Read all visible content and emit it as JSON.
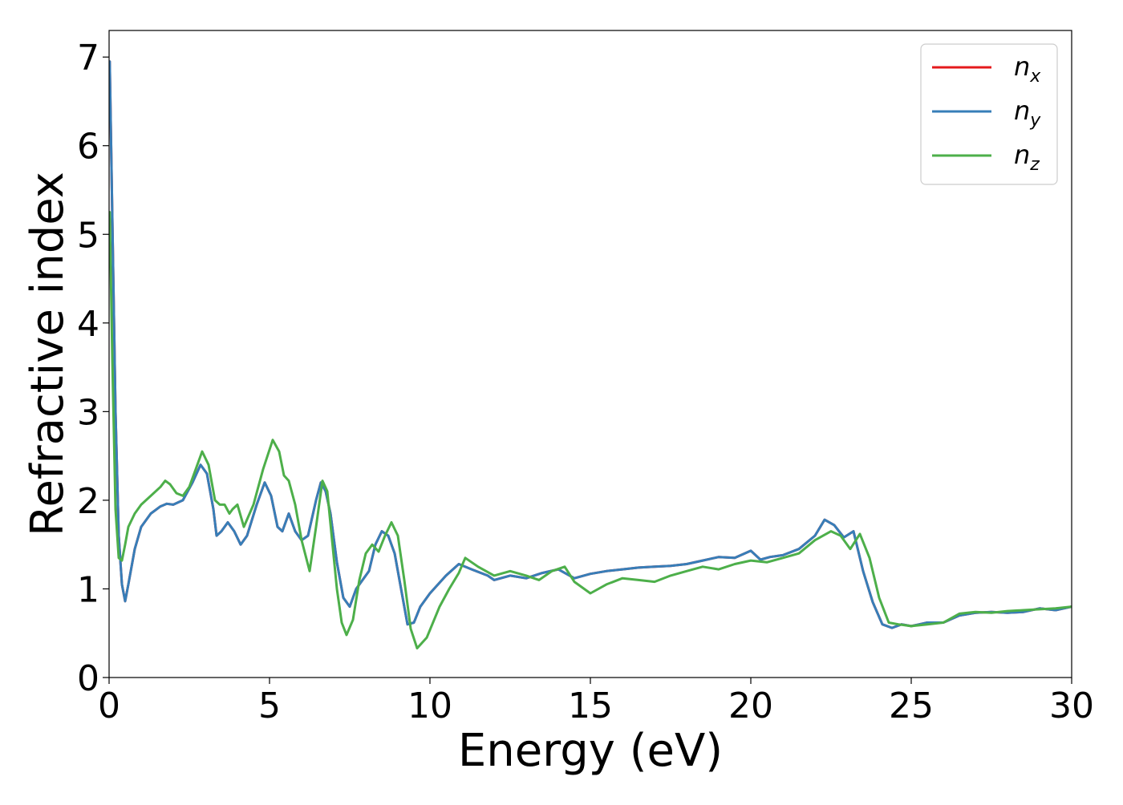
{
  "chart_data": {
    "type": "line",
    "title": "",
    "xlabel": "Energy (eV)",
    "ylabel": "Refractive index",
    "xlim": [
      0,
      30
    ],
    "ylim": [
      0,
      7.3
    ],
    "xticks": [
      "0",
      "5",
      "10",
      "15",
      "20",
      "25",
      "30"
    ],
    "yticks": [
      "0",
      "1",
      "2",
      "3",
      "4",
      "5",
      "6",
      "7"
    ],
    "grid": false,
    "legend_position": "top-right",
    "legend": [
      {
        "base": "n",
        "sub": "x",
        "color": "#e41a1c"
      },
      {
        "base": "n",
        "sub": "y",
        "color": "#377eb8"
      },
      {
        "base": "n",
        "sub": "z",
        "color": "#4daf4a"
      }
    ],
    "series": [
      {
        "name": "n_x",
        "color": "#e41a1c",
        "x": [
          0.02,
          0.1,
          0.2,
          0.3,
          0.4,
          0.5,
          0.6,
          0.8,
          1.0,
          1.3,
          1.6,
          1.8,
          2.0,
          2.3,
          2.6,
          2.85,
          3.05,
          3.25,
          3.35,
          3.5,
          3.7,
          3.9,
          4.1,
          4.3,
          4.6,
          4.85,
          5.05,
          5.25,
          5.4,
          5.6,
          5.8,
          6.0,
          6.2,
          6.45,
          6.6,
          6.75,
          6.9,
          7.1,
          7.3,
          7.5,
          7.7,
          7.9,
          8.1,
          8.3,
          8.5,
          8.7,
          8.9,
          9.1,
          9.3,
          9.5,
          9.7,
          10.0,
          10.5,
          10.9,
          11.3,
          11.8,
          12.0,
          12.5,
          13.0,
          13.5,
          14.0,
          14.5,
          15.0,
          15.5,
          16.0,
          16.5,
          17.0,
          17.5,
          18.0,
          18.5,
          19.0,
          19.5,
          20.0,
          20.3,
          20.6,
          21.0,
          21.5,
          22.0,
          22.3,
          22.6,
          22.9,
          23.2,
          23.5,
          23.8,
          24.1,
          24.4,
          24.7,
          25.0,
          25.5,
          26.0,
          26.5,
          27.0,
          27.5,
          28.0,
          28.5,
          29.0,
          29.5,
          30.0
        ],
        "y": [
          6.95,
          5.2,
          3.0,
          1.6,
          1.05,
          0.86,
          1.05,
          1.45,
          1.7,
          1.85,
          1.93,
          1.96,
          1.95,
          2.0,
          2.2,
          2.4,
          2.3,
          1.9,
          1.6,
          1.65,
          1.75,
          1.65,
          1.5,
          1.6,
          1.95,
          2.2,
          2.05,
          1.7,
          1.65,
          1.85,
          1.65,
          1.55,
          1.6,
          2.0,
          2.2,
          2.1,
          1.85,
          1.3,
          0.9,
          0.8,
          1.0,
          1.1,
          1.2,
          1.5,
          1.65,
          1.6,
          1.4,
          1.0,
          0.6,
          0.62,
          0.8,
          0.95,
          1.15,
          1.28,
          1.22,
          1.15,
          1.1,
          1.15,
          1.12,
          1.18,
          1.22,
          1.12,
          1.17,
          1.2,
          1.22,
          1.24,
          1.25,
          1.26,
          1.28,
          1.32,
          1.36,
          1.35,
          1.43,
          1.33,
          1.36,
          1.38,
          1.45,
          1.6,
          1.78,
          1.72,
          1.58,
          1.65,
          1.2,
          0.85,
          0.6,
          0.56,
          0.6,
          0.58,
          0.62,
          0.62,
          0.7,
          0.73,
          0.74,
          0.73,
          0.74,
          0.78,
          0.76,
          0.8
        ]
      },
      {
        "name": "n_y",
        "color": "#377eb8",
        "x": [
          0.02,
          0.1,
          0.2,
          0.3,
          0.4,
          0.5,
          0.6,
          0.8,
          1.0,
          1.3,
          1.6,
          1.8,
          2.0,
          2.3,
          2.6,
          2.85,
          3.05,
          3.25,
          3.35,
          3.5,
          3.7,
          3.9,
          4.1,
          4.3,
          4.6,
          4.85,
          5.05,
          5.25,
          5.4,
          5.6,
          5.8,
          6.0,
          6.2,
          6.45,
          6.6,
          6.75,
          6.9,
          7.1,
          7.3,
          7.5,
          7.7,
          7.9,
          8.1,
          8.3,
          8.5,
          8.7,
          8.9,
          9.1,
          9.3,
          9.5,
          9.7,
          10.0,
          10.5,
          10.9,
          11.3,
          11.8,
          12.0,
          12.5,
          13.0,
          13.5,
          14.0,
          14.5,
          15.0,
          15.5,
          16.0,
          16.5,
          17.0,
          17.5,
          18.0,
          18.5,
          19.0,
          19.5,
          20.0,
          20.3,
          20.6,
          21.0,
          21.5,
          22.0,
          22.3,
          22.6,
          22.9,
          23.2,
          23.5,
          23.8,
          24.1,
          24.4,
          24.7,
          25.0,
          25.5,
          26.0,
          26.5,
          27.0,
          27.5,
          28.0,
          28.5,
          29.0,
          29.5,
          30.0
        ],
        "y": [
          6.95,
          5.2,
          3.0,
          1.6,
          1.05,
          0.86,
          1.05,
          1.45,
          1.7,
          1.85,
          1.93,
          1.96,
          1.95,
          2.0,
          2.2,
          2.4,
          2.3,
          1.9,
          1.6,
          1.65,
          1.75,
          1.65,
          1.5,
          1.6,
          1.95,
          2.2,
          2.05,
          1.7,
          1.65,
          1.85,
          1.65,
          1.55,
          1.6,
          2.0,
          2.2,
          2.1,
          1.85,
          1.3,
          0.9,
          0.8,
          1.0,
          1.1,
          1.2,
          1.5,
          1.65,
          1.6,
          1.4,
          1.0,
          0.6,
          0.62,
          0.8,
          0.95,
          1.15,
          1.28,
          1.22,
          1.15,
          1.1,
          1.15,
          1.12,
          1.18,
          1.22,
          1.12,
          1.17,
          1.2,
          1.22,
          1.24,
          1.25,
          1.26,
          1.28,
          1.32,
          1.36,
          1.35,
          1.43,
          1.33,
          1.36,
          1.38,
          1.45,
          1.6,
          1.78,
          1.72,
          1.58,
          1.65,
          1.2,
          0.85,
          0.6,
          0.56,
          0.6,
          0.58,
          0.62,
          0.62,
          0.7,
          0.73,
          0.74,
          0.73,
          0.74,
          0.78,
          0.76,
          0.8
        ]
      },
      {
        "name": "n_z",
        "color": "#4daf4a",
        "x": [
          0.02,
          0.1,
          0.2,
          0.3,
          0.4,
          0.5,
          0.6,
          0.8,
          1.0,
          1.3,
          1.6,
          1.75,
          1.9,
          2.1,
          2.3,
          2.5,
          2.7,
          2.9,
          3.1,
          3.3,
          3.45,
          3.6,
          3.75,
          3.85,
          4.0,
          4.2,
          4.5,
          4.8,
          5.1,
          5.3,
          5.45,
          5.6,
          5.8,
          6.0,
          6.25,
          6.45,
          6.65,
          6.8,
          6.95,
          7.1,
          7.25,
          7.4,
          7.6,
          7.8,
          8.0,
          8.2,
          8.4,
          8.6,
          8.8,
          9.0,
          9.2,
          9.4,
          9.6,
          9.9,
          10.3,
          10.6,
          10.9,
          11.1,
          11.5,
          12.0,
          12.5,
          13.0,
          13.4,
          13.8,
          14.2,
          14.5,
          15.0,
          15.5,
          16.0,
          16.5,
          17.0,
          17.5,
          18.0,
          18.5,
          19.0,
          19.5,
          20.0,
          20.5,
          21.0,
          21.5,
          22.0,
          22.5,
          22.8,
          23.1,
          23.4,
          23.7,
          24.0,
          24.3,
          24.6,
          25.0,
          25.5,
          26.0,
          26.5,
          27.0,
          27.5,
          28.0,
          28.5,
          29.0,
          29.5,
          30.0
        ],
        "y": [
          5.25,
          3.6,
          1.9,
          1.35,
          1.32,
          1.5,
          1.7,
          1.85,
          1.95,
          2.05,
          2.15,
          2.22,
          2.18,
          2.08,
          2.05,
          2.15,
          2.35,
          2.55,
          2.4,
          2.0,
          1.95,
          1.95,
          1.85,
          1.9,
          1.95,
          1.7,
          1.95,
          2.35,
          2.68,
          2.55,
          2.28,
          2.22,
          1.95,
          1.55,
          1.2,
          1.7,
          2.22,
          2.1,
          1.55,
          1.0,
          0.62,
          0.48,
          0.65,
          1.1,
          1.4,
          1.5,
          1.42,
          1.6,
          1.75,
          1.6,
          1.1,
          0.55,
          0.33,
          0.45,
          0.8,
          1.0,
          1.18,
          1.35,
          1.25,
          1.15,
          1.2,
          1.15,
          1.1,
          1.2,
          1.25,
          1.08,
          0.95,
          1.05,
          1.12,
          1.1,
          1.08,
          1.15,
          1.2,
          1.25,
          1.22,
          1.28,
          1.32,
          1.3,
          1.35,
          1.4,
          1.55,
          1.65,
          1.6,
          1.45,
          1.62,
          1.35,
          0.9,
          0.62,
          0.6,
          0.58,
          0.6,
          0.62,
          0.72,
          0.74,
          0.73,
          0.75,
          0.76,
          0.77,
          0.78,
          0.8
        ]
      }
    ]
  }
}
